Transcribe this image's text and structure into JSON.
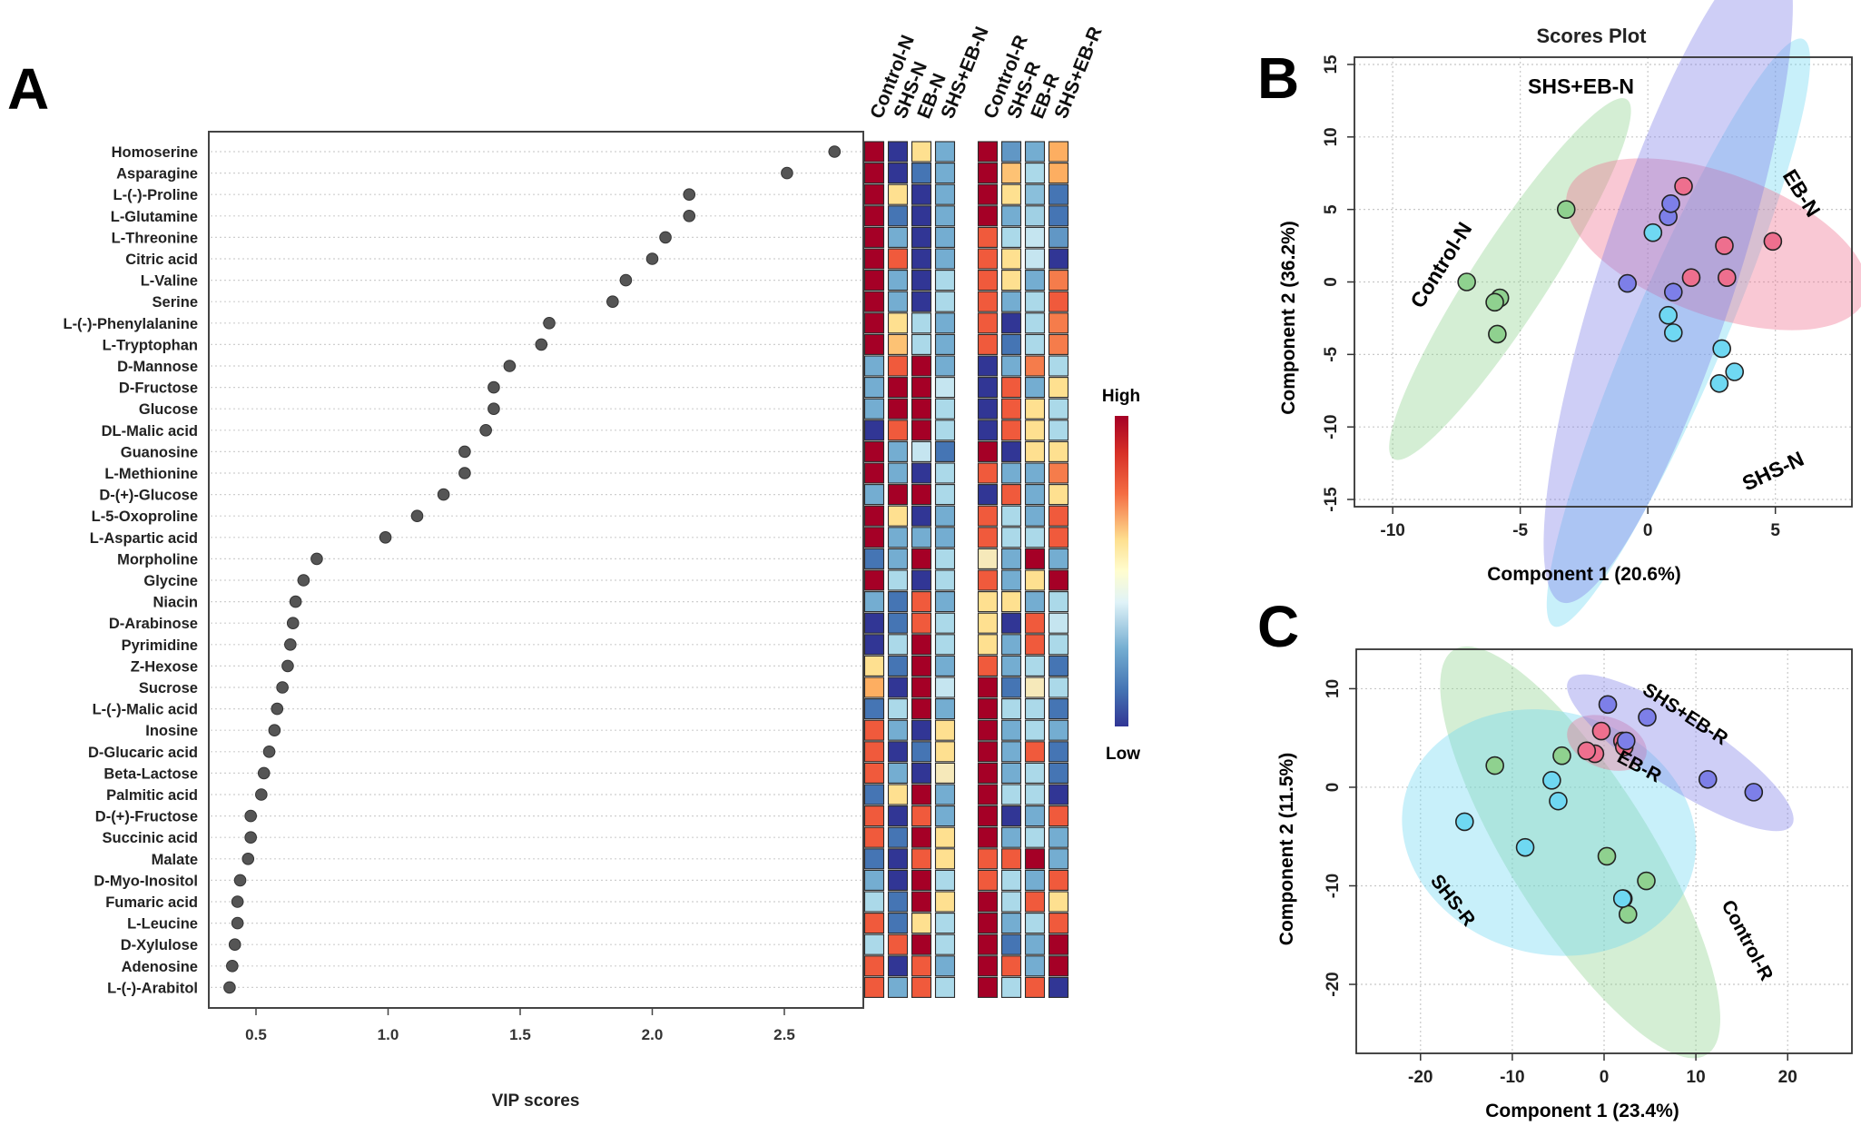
{
  "panel_labels": {
    "a": "A",
    "b": "B",
    "c": "C"
  },
  "colors": {
    "high": "#a50026",
    "mid": "#fffdcf",
    "low": "#313695",
    "control": "#8fd18f",
    "shs": "#6fd8f2",
    "eb": "#ee6f8e",
    "shseb": "#7d7fe8"
  },
  "chart_data": [
    {
      "id": "vip",
      "type": "scatter",
      "title": "",
      "xlabel": "VIP scores",
      "ylabel": "",
      "xlim": [
        0.3,
        2.75
      ],
      "xticks": [
        "0.5",
        "1.0",
        "1.5",
        "2.0",
        "2.5"
      ],
      "metabolites": [
        "Homoserine",
        "Asparagine",
        "L-(-)-Proline",
        "L-Glutamine",
        "L-Threonine",
        "Citric acid",
        "L-Valine",
        "Serine",
        "L-(-)-Phenylalanine",
        "L-Tryptophan",
        "D-Mannose",
        "D-Fructose",
        "Glucose",
        "DL-Malic acid",
        "Guanosine",
        "L-Methionine",
        "D-(+)-Glucose",
        "L-5-Oxoproline",
        "L-Aspartic acid",
        "Morpholine",
        "Glycine",
        "Niacin",
        "D-Arabinose",
        "Pyrimidine",
        "Z-Hexose",
        "Sucrose",
        "L-(-)-Malic acid",
        "Inosine",
        "D-Glucaric acid",
        "Beta-Lactose",
        "Palmitic acid",
        "D-(+)-Fructose",
        "Succinic acid",
        "Malate",
        "D-Myo-Inositol",
        "Fumaric acid",
        "L-Leucine",
        "D-Xylulose",
        "Adenosine",
        "L-(-)-Arabitol"
      ],
      "values": [
        2.69,
        2.51,
        2.14,
        2.14,
        2.05,
        2.0,
        1.9,
        1.85,
        1.61,
        1.58,
        1.46,
        1.4,
        1.4,
        1.37,
        1.29,
        1.29,
        1.21,
        1.11,
        0.99,
        0.73,
        0.68,
        0.65,
        0.64,
        0.63,
        0.62,
        0.6,
        0.58,
        0.57,
        0.55,
        0.53,
        0.52,
        0.48,
        0.48,
        0.47,
        0.44,
        0.43,
        0.43,
        0.42,
        0.41,
        0.4
      ]
    },
    {
      "id": "heatmap",
      "type": "heatmap",
      "groups": [
        "Control-N",
        "SHS-N",
        "EB-N",
        "SHS+EB-N",
        "Control-R",
        "SHS-R",
        "EB-R",
        "SHS+EB-R"
      ],
      "scale_high_label": "High",
      "scale_low_label": "Low",
      "value_range": [
        -2,
        2
      ],
      "matrix": [
        [
          2,
          -2,
          0.5,
          -1,
          2,
          -1.2,
          -1,
          1
        ],
        [
          2,
          -2,
          -1.5,
          -1,
          2,
          0.8,
          -0.5,
          1
        ],
        [
          2,
          0.5,
          -2,
          -1,
          2,
          0.5,
          -0.8,
          -1.5
        ],
        [
          2,
          -1.5,
          -2,
          -1,
          2,
          -1,
          -0.6,
          -1.5
        ],
        [
          2,
          -1,
          -2,
          -1,
          1.5,
          -0.5,
          -0.3,
          -1.2
        ],
        [
          2,
          1.5,
          -2,
          -1,
          1.5,
          0.5,
          -0.3,
          -2
        ],
        [
          2,
          -1,
          -2,
          -0.5,
          1.5,
          0.5,
          -1,
          1.3
        ],
        [
          2,
          -1,
          -2,
          -0.5,
          1.5,
          -1,
          -0.5,
          1.5
        ],
        [
          2,
          0.5,
          -0.5,
          -1,
          1.5,
          -2,
          -0.5,
          1.3
        ],
        [
          2,
          0.8,
          -0.5,
          -1,
          1.5,
          -1.5,
          -0.5,
          1.3
        ],
        [
          -1,
          1.5,
          2,
          -1,
          -2,
          -1,
          1.3,
          -0.5
        ],
        [
          -1,
          2,
          2,
          -0.3,
          -2,
          1.5,
          -1,
          0.5
        ],
        [
          -1,
          2,
          2,
          -0.5,
          -2,
          1.5,
          0.5,
          -0.5
        ],
        [
          -2,
          1.5,
          2,
          -0.5,
          -2,
          1.5,
          0.5,
          -0.5
        ],
        [
          2,
          -1,
          -0.3,
          -1.5,
          2,
          -2,
          0.5,
          0.5
        ],
        [
          2,
          -1,
          -2,
          -0.5,
          1.5,
          -1,
          -1,
          1.3
        ],
        [
          -1,
          2,
          2,
          -0.5,
          -2,
          1.5,
          -1,
          0.5
        ],
        [
          2,
          0.5,
          -2,
          -1,
          1.5,
          -0.5,
          -1,
          1.5
        ],
        [
          2,
          -1,
          -1,
          -1,
          1.5,
          -0.5,
          -0.5,
          1.5
        ],
        [
          -1.5,
          -1,
          2,
          -0.5,
          0.3,
          -1,
          2,
          -1
        ],
        [
          2,
          -0.5,
          -2,
          -0.5,
          1.5,
          -1,
          0.5,
          2
        ],
        [
          -1,
          -1.5,
          1.5,
          -1,
          0.5,
          0.5,
          -1,
          -0.5
        ],
        [
          -2,
          -1.5,
          1.5,
          -0.5,
          0.5,
          -2,
          1.5,
          -0.3
        ],
        [
          -2,
          -0.5,
          2,
          -0.5,
          0.5,
          -1,
          1.5,
          -0.5
        ],
        [
          0.5,
          -1.5,
          2,
          -1,
          1.5,
          -1,
          -0.5,
          -1.5
        ],
        [
          1,
          -2,
          2,
          -0.3,
          2,
          -1.5,
          0.3,
          -0.5
        ],
        [
          -1.5,
          -0.5,
          2,
          -1,
          2,
          -0.5,
          -0.5,
          -1.5
        ],
        [
          1.5,
          -1,
          -2,
          0.5,
          2,
          -1,
          -0.5,
          -1
        ],
        [
          1.5,
          -2,
          -1.5,
          0.5,
          2,
          -1,
          1.5,
          -1.5
        ],
        [
          1.5,
          -1,
          -2,
          0.3,
          2,
          -1,
          -0.5,
          -1.5
        ],
        [
          -1.5,
          0.5,
          2,
          -1,
          2,
          -0.5,
          -0.5,
          -2
        ],
        [
          1.5,
          -2,
          1.5,
          -1,
          2,
          -2,
          -1,
          1.5
        ],
        [
          1.5,
          -1.5,
          2,
          0.5,
          2,
          -1,
          -0.5,
          -1
        ],
        [
          -1.5,
          -2,
          1.5,
          0.5,
          1.5,
          1.5,
          2,
          -1
        ],
        [
          -1,
          -2,
          2,
          -0.5,
          1.5,
          -0.5,
          -1,
          1.5
        ],
        [
          -0.5,
          -1.5,
          2,
          0.5,
          2,
          -0.5,
          1.5,
          0.5
        ],
        [
          1.5,
          -1.5,
          0.5,
          -0.5,
          2,
          -1,
          -0.5,
          1.5
        ],
        [
          -0.5,
          1.5,
          2,
          -0.5,
          2,
          -1.5,
          -1,
          2
        ],
        [
          1.5,
          -2,
          1.5,
          -1,
          2,
          1.5,
          -1,
          2
        ],
        [
          1.5,
          -1,
          1.5,
          -0.5,
          2,
          -0.5,
          1.5,
          -2
        ]
      ]
    },
    {
      "id": "pca_b",
      "type": "scatter",
      "title": "Scores Plot",
      "xlabel": "Component 1 (20.6%)",
      "ylabel": "Component 2 (36.2%)",
      "xlim": [
        -11.5,
        8
      ],
      "ylim": [
        -15.5,
        15.5
      ],
      "xticks": [
        -10,
        -5,
        0,
        5
      ],
      "yticks": [
        -15,
        -10,
        -5,
        0,
        5,
        10,
        15
      ],
      "series": [
        {
          "name": "Control-N",
          "color": "control",
          "points": [
            [
              -7.1,
              0
            ],
            [
              -5.8,
              -1.1
            ],
            [
              -6.0,
              -1.4
            ],
            [
              -5.9,
              -3.6
            ],
            [
              -3.2,
              5.0
            ]
          ],
          "ellipse": {
            "cx": -5.4,
            "cy": 0.2,
            "rx": 8.4,
            "ry": 2.6,
            "angle_deg": 57
          }
        },
        {
          "name": "SHS-N",
          "color": "shs",
          "points": [
            [
              0.2,
              3.4
            ],
            [
              0.8,
              -2.3
            ],
            [
              1.0,
              -3.5
            ],
            [
              2.9,
              -4.6
            ],
            [
              3.4,
              -6.2
            ],
            [
              2.8,
              -7.0
            ]
          ],
          "ellipse": {
            "cx": 1.2,
            "cy": -3.5,
            "rx": 12.5,
            "ry": 3.2,
            "angle_deg": 67
          }
        },
        {
          "name": "EB-N",
          "color": "eb",
          "points": [
            [
              1.4,
              6.6
            ],
            [
              3.0,
              2.5
            ],
            [
              3.1,
              0.3
            ],
            [
              4.9,
              2.8
            ],
            [
              1.7,
              0.3
            ]
          ],
          "ellipse": {
            "cx": 2.7,
            "cy": 2.6,
            "rx": 6.2,
            "ry": 4.9,
            "angle_deg": -20
          }
        },
        {
          "name": "SHS+EB-N",
          "color": "shseb",
          "points": [
            [
              0.8,
              4.5
            ],
            [
              0.9,
              5.4
            ],
            [
              -0.8,
              -0.1
            ],
            [
              1.0,
              -0.7
            ]
          ],
          "ellipse": {
            "cx": 0.8,
            "cy": 0.5,
            "rx": 13.5,
            "ry": 4.7,
            "angle_deg": 72
          }
        }
      ],
      "group_labels": [
        "SHS+EB-N",
        "EB-N",
        "Control-N",
        "SHS-N"
      ]
    },
    {
      "id": "pca_c",
      "type": "scatter",
      "title": "",
      "xlabel": "Component 1 (23.4%)",
      "ylabel": "Component 2 (11.5%)",
      "xlim": [
        -27,
        27
      ],
      "ylim": [
        -27,
        14
      ],
      "xticks": [
        -20,
        -10,
        0,
        10,
        20
      ],
      "yticks": [
        -20,
        -10,
        0,
        10
      ],
      "series": [
        {
          "name": "Control-R",
          "color": "control",
          "points": [
            [
              -11.9,
              2.2
            ],
            [
              -4.6,
              3.2
            ],
            [
              0.3,
              -7.0
            ],
            [
              4.6,
              -9.5
            ],
            [
              2.1,
              -11.3
            ],
            [
              2.6,
              -12.9
            ]
          ],
          "ellipse": {
            "cx": -2.6,
            "cy": -6.6,
            "rx": 26,
            "ry": 7.2,
            "angle_deg": -58
          }
        },
        {
          "name": "SHS-R",
          "color": "shs",
          "points": [
            [
              -5.7,
              0.7
            ],
            [
              -5.0,
              -1.4
            ],
            [
              -15.2,
              -3.5
            ],
            [
              -8.6,
              -6.1
            ],
            [
              2.0,
              -11.3
            ]
          ],
          "ellipse": {
            "cx": -6.0,
            "cy": -4.6,
            "rx": 16.2,
            "ry": 12.3,
            "angle_deg": -15
          }
        },
        {
          "name": "EB-R",
          "color": "eb",
          "points": [
            [
              -1.0,
              3.4
            ],
            [
              -1.9,
              3.7
            ],
            [
              -0.3,
              5.7
            ],
            [
              2.0,
              4.7
            ],
            [
              2.2,
              4.1
            ]
          ],
          "ellipse": {
            "cx": 0.3,
            "cy": 4.5,
            "rx": 4.5,
            "ry": 2.6,
            "angle_deg": -20
          }
        },
        {
          "name": "SHS+EB-R",
          "color": "shseb",
          "points": [
            [
              0.4,
              8.4
            ],
            [
              4.7,
              7.1
            ],
            [
              2.4,
              4.7
            ],
            [
              11.3,
              0.8
            ],
            [
              16.3,
              -0.5
            ]
          ],
          "ellipse": {
            "cx": 8.3,
            "cy": 3.5,
            "rx": 14.5,
            "ry": 3.6,
            "angle_deg": -33
          }
        }
      ],
      "group_labels": [
        "SHS+EB-R",
        "EB-R",
        "SHS-R",
        "Control-R"
      ]
    }
  ]
}
